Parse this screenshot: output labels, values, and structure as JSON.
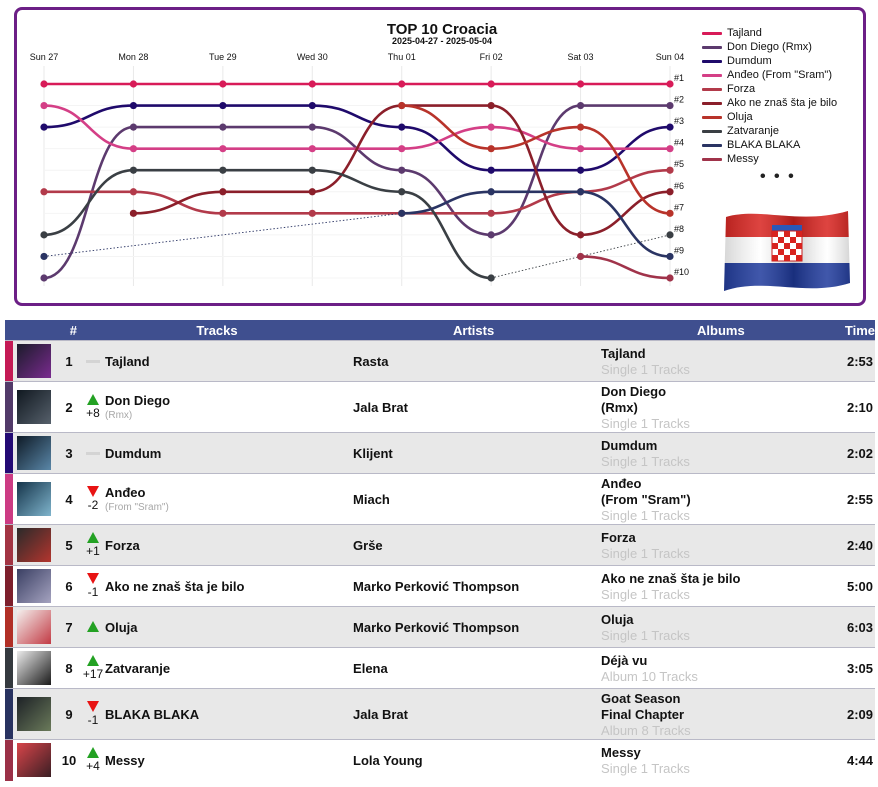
{
  "chart_data": {
    "type": "line",
    "title": "TOP 10 Croacia",
    "subtitle": "2025-04-27 - 2025-05-04",
    "x": [
      "Sun 27",
      "Mon 28",
      "Tue 29",
      "Wed 30",
      "Thu 01",
      "Fri 02",
      "Sat 03",
      "Sun 04"
    ],
    "y_tick_labels": [
      "#1",
      "#2",
      "#3",
      "#4",
      "#5",
      "#6",
      "#7",
      "#8",
      "#9",
      "#10"
    ],
    "ylim": [
      1,
      10
    ],
    "y_reversed": true,
    "series": [
      {
        "name": "Tajland",
        "color": "#d81b58",
        "values": [
          1,
          1,
          1,
          1,
          1,
          1,
          1,
          1
        ]
      },
      {
        "name": "Don Diego (Rmx)",
        "color": "#5c3a6e",
        "values": [
          10,
          3,
          3,
          3,
          5,
          8,
          2,
          2
        ]
      },
      {
        "name": "Dumdum",
        "color": "#1f0a6b",
        "values": [
          3,
          2,
          2,
          2,
          3,
          5,
          5,
          3
        ]
      },
      {
        "name": "Anđeo (From \"Sram\")",
        "color": "#d43f86",
        "values": [
          2,
          4,
          4,
          4,
          4,
          3,
          4,
          4
        ]
      },
      {
        "name": "Forza",
        "color": "#b23a4a",
        "values": [
          6,
          6,
          7,
          7,
          7,
          7,
          6,
          5
        ]
      },
      {
        "name": "Ako ne znaš šta je bilo",
        "color": "#8b1f2a",
        "values": [
          null,
          7,
          6,
          6,
          2,
          2,
          8,
          6
        ]
      },
      {
        "name": "Oluja",
        "color": "#b8332a",
        "values": [
          null,
          null,
          null,
          null,
          2,
          4,
          3,
          7
        ]
      },
      {
        "name": "Zatvaranje",
        "color": "#3a3f44",
        "values": [
          8,
          5,
          5,
          5,
          6,
          10,
          null,
          8
        ]
      },
      {
        "name": "BLAKA BLAKA",
        "color": "#2a3463",
        "values": [
          9,
          null,
          null,
          null,
          7,
          6,
          6,
          9
        ]
      },
      {
        "name": "Messy",
        "color": "#a0334a",
        "values": [
          null,
          null,
          null,
          null,
          null,
          null,
          9,
          10
        ]
      }
    ],
    "legend": [
      "Tajland",
      "Don Diego (Rmx)",
      "Dumdum",
      "Anđeo (From \"Sram\")",
      "Forza",
      "Ako ne znaš šta je bilo",
      "Oluja",
      "Zatvaranje",
      "BLAKA BLAKA",
      "Messy"
    ],
    "legend_more": "• • •",
    "legend_position": "right",
    "flag": "Croatia flag"
  },
  "table": {
    "headers": {
      "rank": "#",
      "tracks": "Tracks",
      "artists": "Artists",
      "albums": "Albums",
      "time": "Time"
    },
    "rows": [
      {
        "rank": "1",
        "color": "#c41a55",
        "move": "same",
        "move_text": "",
        "title": "Tajland",
        "subtitle": "",
        "artist": "Rasta",
        "album_lines": [
          "Tajland"
        ],
        "album_meta": "Single 1 Tracks",
        "time": "2:53",
        "cover": [
          "#1b1b2a",
          "#7a2b8f"
        ]
      },
      {
        "rank": "2",
        "color": "#523a69",
        "move": "up",
        "move_text": "+8",
        "title": "Don Diego",
        "subtitle": "(Rmx)",
        "artist": "Jala Brat",
        "album_lines": [
          "Don Diego",
          "(Rmx)"
        ],
        "album_meta": "Single 1 Tracks",
        "time": "2:10",
        "cover": [
          "#101820",
          "#56606b"
        ]
      },
      {
        "rank": "3",
        "color": "#230a74",
        "move": "same",
        "move_text": "",
        "title": "Dumdum",
        "subtitle": "",
        "artist": "Klijent",
        "album_lines": [
          "Dumdum"
        ],
        "album_meta": "Single 1 Tracks",
        "time": "2:02",
        "cover": [
          "#0e1a26",
          "#5a87a8"
        ]
      },
      {
        "rank": "4",
        "color": "#cc3b83",
        "move": "down",
        "move_text": "-2",
        "title": "Anđeo",
        "subtitle": "(From \"Sram\")",
        "artist": "Miach",
        "album_lines": [
          "Anđeo",
          "(From \"Sram\")"
        ],
        "album_meta": "Single 1 Tracks",
        "time": "2:55",
        "cover": [
          "#15344a",
          "#7fb4cc"
        ]
      },
      {
        "rank": "5",
        "color": "#a23443",
        "move": "up",
        "move_text": "+1",
        "title": "Forza",
        "subtitle": "",
        "artist": "Grše",
        "album_lines": [
          "Forza"
        ],
        "album_meta": "Single 1 Tracks",
        "time": "2:40",
        "cover": [
          "#2a2a2a",
          "#b3352e"
        ]
      },
      {
        "rank": "6",
        "color": "#7d1f2c",
        "move": "down",
        "move_text": "-1",
        "title": "Ako ne znaš šta je bilo",
        "subtitle": "",
        "artist": "Marko Perković Thompson",
        "album_lines": [
          "Ako ne znaš šta je bilo"
        ],
        "album_meta": "Single 1 Tracks",
        "time": "5:00",
        "cover": [
          "#3a3f63",
          "#a5a3c0"
        ]
      },
      {
        "rank": "7",
        "color": "#b12f26",
        "move": "up",
        "move_text": "",
        "title": "Oluja",
        "subtitle": "",
        "artist": "Marko Perković Thompson",
        "album_lines": [
          "Oluja"
        ],
        "album_meta": "Single 1 Tracks",
        "time": "6:03",
        "cover": [
          "#f4f0ee",
          "#c23a44"
        ]
      },
      {
        "rank": "8",
        "color": "#34393e",
        "move": "up",
        "move_text": "+17",
        "title": "Zatvaranje",
        "subtitle": "",
        "artist": "Elena",
        "album_lines": [
          "Déjà vu"
        ],
        "album_meta": "Album 10 Tracks",
        "time": "3:05",
        "cover": [
          "#ececec",
          "#1a1a1a"
        ]
      },
      {
        "rank": "9",
        "color": "#283260",
        "move": "down",
        "move_text": "-1",
        "title": "BLAKA BLAKA",
        "subtitle": "",
        "artist": "Jala Brat",
        "album_lines": [
          "Goat Season",
          "Final Chapter"
        ],
        "album_meta": "Album 8 Tracks",
        "time": "2:09",
        "cover": [
          "#1d2126",
          "#6a7a5a"
        ]
      },
      {
        "rank": "10",
        "color": "#9b3047",
        "move": "up",
        "move_text": "+4",
        "title": "Messy",
        "subtitle": "",
        "artist": "Lola Young",
        "album_lines": [
          "Messy"
        ],
        "album_meta": "Single 1 Tracks",
        "time": "4:44",
        "cover": [
          "#d8454a",
          "#3a1e24"
        ]
      }
    ]
  }
}
